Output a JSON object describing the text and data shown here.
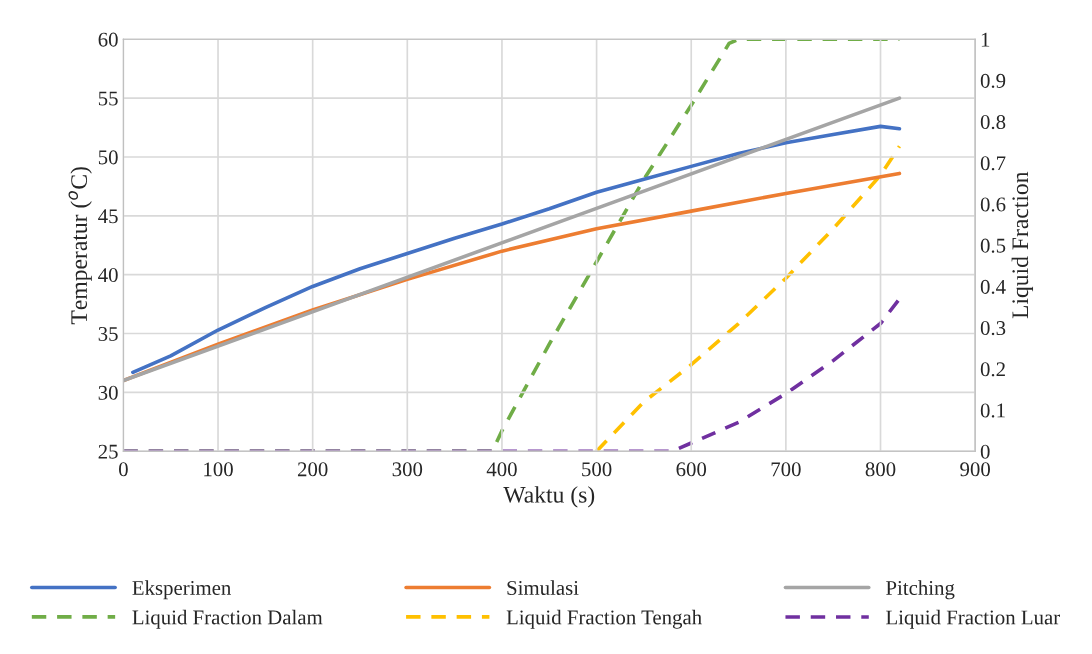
{
  "chart_data": {
    "type": "line",
    "xlabel": "Waktu (s)",
    "ylabel": "Temperatur ($^{o}$C)",
    "y2label": "Liquid Fraction",
    "xlim": [
      0,
      900
    ],
    "xticks": [
      0,
      100,
      200,
      300,
      400,
      500,
      600,
      700,
      800,
      900
    ],
    "ylim": [
      25,
      60
    ],
    "yticks": [
      25,
      30,
      35,
      40,
      45,
      50,
      55,
      60
    ],
    "y2lim": [
      0,
      1
    ],
    "y2ticks": [
      0,
      {
        "value": 0.1,
        "label": "0.1"
      },
      {
        "value": 0.2,
        "label": "0.2"
      },
      {
        "value": 0.3,
        "label": "0.3"
      },
      {
        "value": 0.4,
        "label": "0.4"
      },
      {
        "value": 0.5,
        "label": "0.5"
      },
      {
        "value": 0.6,
        "label": "0.6"
      },
      {
        "value": 0.7,
        "label": "0.7"
      },
      {
        "value": 0.8,
        "label": "0.8"
      },
      {
        "value": 0.9,
        "label": "0.9"
      },
      1
    ],
    "grid": true,
    "legend": "bottom",
    "marker": "none",
    "series": [
      {
        "name": "Eksperimen",
        "color": "#4472c4",
        "line_style": "solid",
        "x": [
          10,
          50,
          100,
          150,
          200,
          250,
          300,
          350,
          400,
          450,
          500,
          550,
          600,
          650,
          700,
          750,
          800,
          820
        ],
        "values": [
          31.7,
          33.1,
          35.3,
          37.2,
          39.0,
          40.5,
          41.8,
          43.1,
          44.3,
          45.6,
          47.0,
          48.1,
          49.2,
          50.3,
          51.2,
          51.9,
          52.6,
          52.4
        ]
      },
      {
        "name": "Simulasi",
        "color": "#ed7d31",
        "line_style": "solid",
        "x": [
          0,
          100,
          200,
          300,
          400,
          500,
          600,
          700,
          820
        ],
        "values": [
          31.0,
          34.1,
          37.0,
          39.6,
          42.0,
          43.9,
          45.4,
          46.9,
          48.6
        ]
      },
      {
        "name": "Pitching",
        "color": "#a5a5a5",
        "line_style": "solid",
        "x": [
          0,
          820
        ],
        "values": [
          31.0,
          55.0
        ]
      },
      {
        "name": "Liquid Fraction Dalam",
        "color": "#70ad47",
        "line_style": "dashed",
        "axis": "y2",
        "x": [
          0,
          390,
          400,
          450,
          500,
          550,
          600,
          640,
          650,
          820
        ],
        "values": [
          0,
          0,
          0.05,
          0.26,
          0.46,
          0.66,
          0.84,
          0.99,
          1,
          1
        ]
      },
      {
        "name": "Liquid Fraction Tengah",
        "color": "#ffc000",
        "line_style": "dashed",
        "axis": "y2",
        "x": [
          500,
          550,
          600,
          650,
          700,
          750,
          800,
          820
        ],
        "values": [
          0,
          0.12,
          0.21,
          0.31,
          0.42,
          0.54,
          0.67,
          0.74
        ]
      },
      {
        "name": "Liquid Fraction Luar",
        "color": "#7030a0",
        "line_style": "dashed",
        "axis": "y2",
        "x": [
          0,
          580,
          600,
          650,
          700,
          750,
          800,
          820
        ],
        "values": [
          0,
          0,
          0.02,
          0.07,
          0.14,
          0.22,
          0.31,
          0.37
        ]
      }
    ]
  }
}
